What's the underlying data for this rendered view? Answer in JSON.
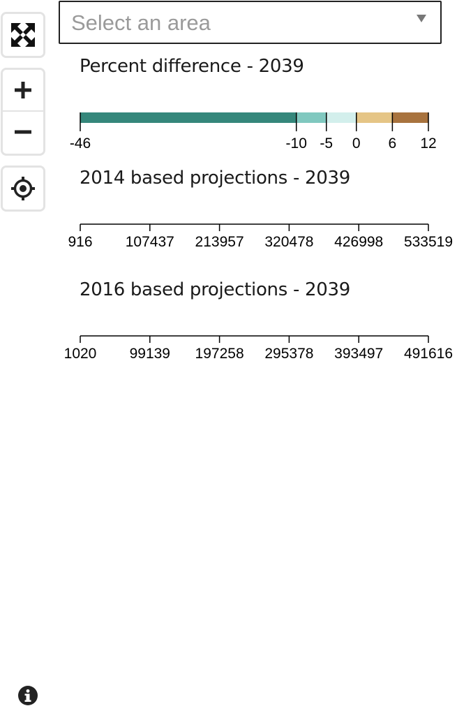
{
  "controls": {
    "fullscreen_icon": "fullscreen-arrows-icon",
    "zoom_in_icon": "plus-icon",
    "zoom_out_icon": "minus-icon",
    "locate_icon": "crosshair-locate-icon",
    "info_icon": "info-circle-icon"
  },
  "area_select": {
    "placeholder": "Select an area",
    "dropdown_icon": "triangle-down-icon"
  },
  "legends": [
    {
      "title": "Percent difference - 2039",
      "kind": "color-bins",
      "breaks": [
        -46,
        -10,
        -5,
        0,
        6,
        12
      ],
      "labels": [
        "-46",
        "-10",
        "-5",
        "0",
        "6",
        "12"
      ],
      "colors": [
        "#35877b",
        "#80c8bf",
        "#d3efec",
        "#e5c586",
        "#a8733e"
      ]
    },
    {
      "title": "2014 based projections - 2039",
      "kind": "scale-axis",
      "labels": [
        "916",
        "107437",
        "213957",
        "320478",
        "426998",
        "533519"
      ]
    },
    {
      "title": "2016 based projections - 2039",
      "kind": "scale-axis",
      "labels": [
        "1020",
        "99139",
        "197258",
        "295378",
        "393497",
        "491616"
      ]
    }
  ]
}
